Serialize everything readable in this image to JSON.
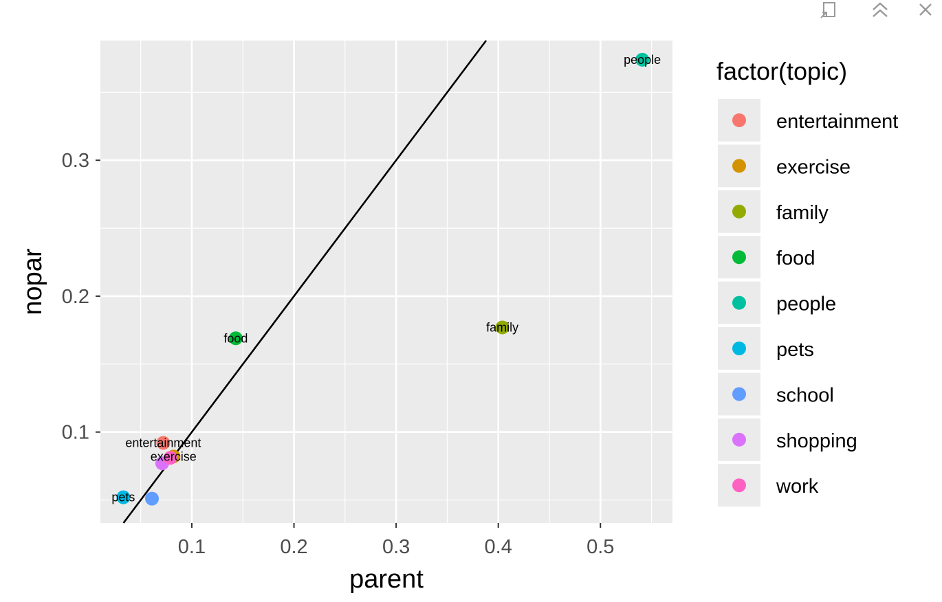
{
  "toolbar": {
    "buttons": [
      {
        "icon": "popout-window-icon"
      },
      {
        "icon": "collapse-up-icon"
      },
      {
        "icon": "close-icon"
      }
    ]
  },
  "colors": {
    "panel_background": "#EBEBEB",
    "grid": "#FFFFFF",
    "toolbar_icon": "#9A9A9A",
    "fit_line": "#000000"
  },
  "chart_data": {
    "type": "scatter",
    "title": "",
    "xlabel": "parent",
    "ylabel": "nopar",
    "xlim": [
      0.0105,
      0.5705
    ],
    "ylim": [
      0.0331,
      0.3881
    ],
    "x_ticks": [
      0.1,
      0.2,
      0.3,
      0.4,
      0.5
    ],
    "x_tick_labels": [
      "0.1",
      "0.2",
      "0.3",
      "0.4",
      "0.5"
    ],
    "y_ticks": [
      0.1,
      0.2,
      0.3
    ],
    "y_tick_labels": [
      "0.1",
      "0.2",
      "0.3"
    ],
    "grid": true,
    "legend_title": "factor(topic)",
    "legend_position": "right",
    "fit_line": {
      "slope": 1,
      "intercept": 0
    },
    "series": [
      {
        "name": "entertainment",
        "color": "#F8766D",
        "x": 0.072,
        "y": 0.092,
        "label": "entertainment"
      },
      {
        "name": "exercise",
        "color": "#D39200",
        "x": 0.082,
        "y": 0.082,
        "label": "exercise"
      },
      {
        "name": "family",
        "color": "#93AA00",
        "x": 0.404,
        "y": 0.177,
        "label": "family"
      },
      {
        "name": "food",
        "color": "#00BA38",
        "x": 0.143,
        "y": 0.169,
        "label": "food"
      },
      {
        "name": "people",
        "color": "#00C19F",
        "x": 0.541,
        "y": 0.374,
        "label": "people"
      },
      {
        "name": "pets",
        "color": "#00B9E3",
        "x": 0.033,
        "y": 0.052,
        "label": "pets"
      },
      {
        "name": "school",
        "color": "#619CFF",
        "x": 0.061,
        "y": 0.051,
        "label": ""
      },
      {
        "name": "shopping",
        "color": "#DB72FB",
        "x": 0.071,
        "y": 0.077,
        "label": ""
      },
      {
        "name": "work",
        "color": "#FF61C3",
        "x": 0.079,
        "y": 0.081,
        "label": ""
      }
    ]
  }
}
